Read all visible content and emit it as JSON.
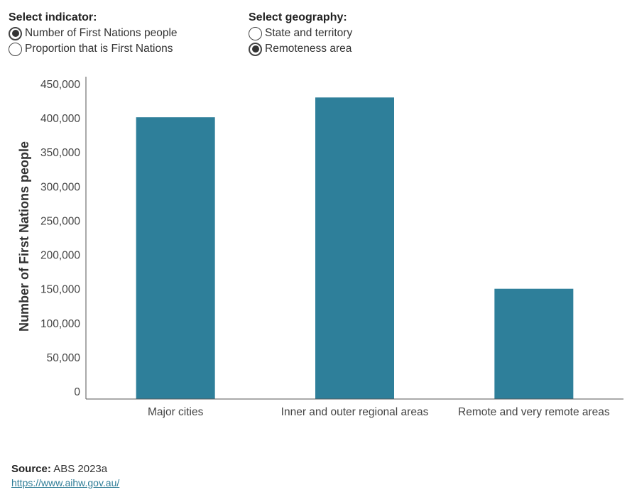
{
  "controls": {
    "indicator": {
      "title": "Select indicator:",
      "options": [
        {
          "label": "Number of First Nations people",
          "selected": true
        },
        {
          "label": "Proportion that is First Nations",
          "selected": false
        }
      ]
    },
    "geography": {
      "title": "Select geography:",
      "options": [
        {
          "label": "State and territory",
          "selected": false
        },
        {
          "label": "Remoteness area",
          "selected": true
        }
      ]
    }
  },
  "chart_data": {
    "type": "bar",
    "categories": [
      "Major cities",
      "Inner and outer regional areas",
      "Remote and very remote areas"
    ],
    "values": [
      402000,
      431000,
      151000
    ],
    "ylabel": "Number of First Nations people",
    "xlabel": "",
    "ylim": [
      0,
      450000
    ],
    "yticks": [
      0,
      50000,
      100000,
      150000,
      200000,
      250000,
      300000,
      350000,
      400000,
      450000
    ],
    "ytick_labels": [
      "0",
      "50,000",
      "100,000",
      "150,000",
      "200,000",
      "250,000",
      "300,000",
      "350,000",
      "400,000",
      "450,000"
    ],
    "bar_color": "#2e7f9a",
    "grid": false
  },
  "footer": {
    "source_label": "Source:",
    "source_text": "ABS 2023a",
    "link_text": "https://www.aihw.gov.au/"
  }
}
